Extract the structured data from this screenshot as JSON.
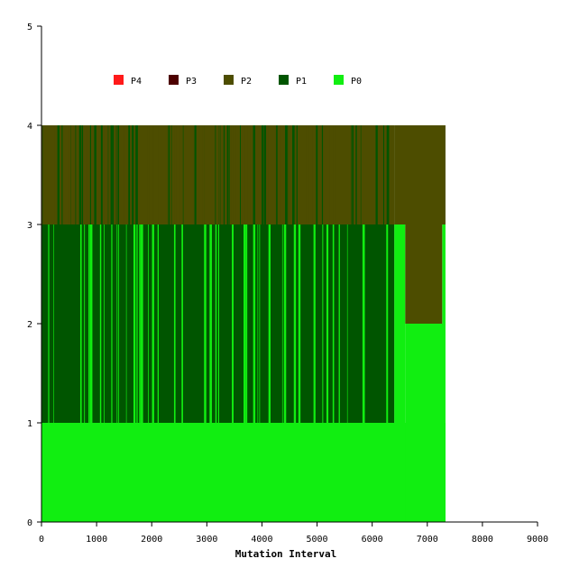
{
  "chart_data": {
    "type": "area",
    "title": "",
    "xlabel": "Mutation Interval",
    "ylabel": "",
    "xlim": [
      0,
      9000
    ],
    "ylim": [
      0,
      5
    ],
    "x_ticks": [
      0,
      1000,
      2000,
      3000,
      4000,
      5000,
      6000,
      7000,
      8000,
      9000
    ],
    "y_ticks": [
      0,
      1,
      2,
      3,
      4,
      5
    ],
    "grid": false,
    "legend_position": "top-left",
    "legend": [
      {
        "name": "P4",
        "color": "#ff1a1a"
      },
      {
        "name": "P3",
        "color": "#4d0000"
      },
      {
        "name": "P2",
        "color": "#4d4d00"
      },
      {
        "name": "P1",
        "color": "#005500"
      },
      {
        "name": "P0",
        "color": "#11ee11"
      }
    ],
    "description_note_free": true,
    "series": [
      {
        "name": "P2",
        "color": "#4d4d00",
        "intervals": [
          {
            "x0": 0,
            "x1": 6400,
            "y0": 3,
            "y1": 4,
            "mixed_with": "P1"
          },
          {
            "x0": 6400,
            "x1": 7330,
            "y0": 3,
            "y1": 4
          },
          {
            "x0": 6600,
            "x1": 7270,
            "y0": 2,
            "y1": 3
          }
        ]
      },
      {
        "name": "P1",
        "color": "#005500",
        "intervals": [
          {
            "x0": 0,
            "x1": 6400,
            "y0": 1,
            "y1": 3,
            "mixed_with": "P0"
          },
          {
            "x0": 0,
            "x1": 6400,
            "y0": 3,
            "y1": 4,
            "mixed_with": "P2"
          }
        ]
      },
      {
        "name": "P0",
        "color": "#11ee11",
        "intervals": [
          {
            "x0": 0,
            "x1": 7330,
            "y0": 0,
            "y1": 1
          },
          {
            "x0": 6400,
            "x1": 6600,
            "y0": 1,
            "y1": 3
          },
          {
            "x0": 6600,
            "x1": 7330,
            "y0": 0,
            "y1": 2
          },
          {
            "x0": 7270,
            "x1": 7330,
            "y0": 2,
            "y1": 3
          }
        ]
      }
    ],
    "data_extent_x": [
      0,
      7330
    ]
  }
}
